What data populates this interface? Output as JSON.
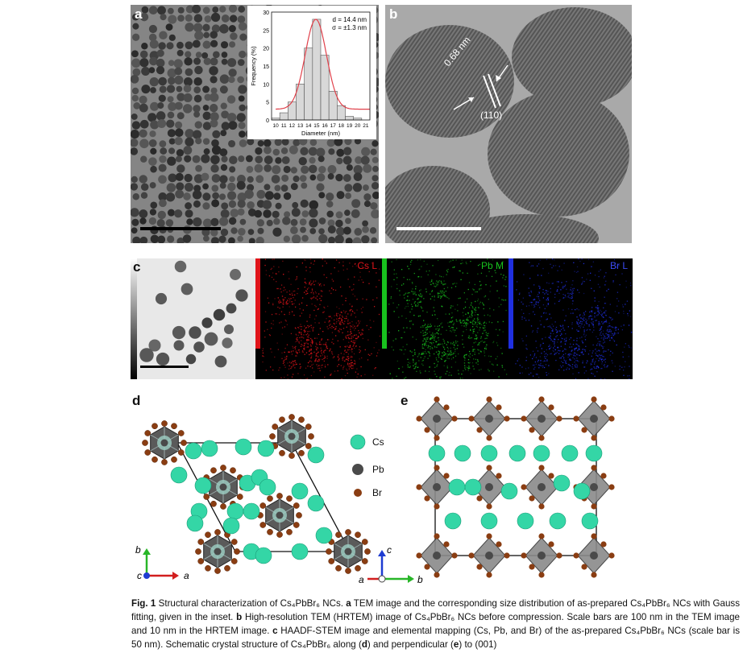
{
  "panels": {
    "a": {
      "label": "a"
    },
    "b": {
      "label": "b",
      "spacing_label": "0.68 nm",
      "plane_label": "(110)"
    },
    "c": {
      "label": "c",
      "maps": [
        {
          "name": "Cs L",
          "color": "#e0141a"
        },
        {
          "name": "Pb M",
          "color": "#18c21e"
        },
        {
          "name": "Br L",
          "color": "#1f2fe0"
        }
      ]
    },
    "d": {
      "label": "d",
      "axis_b": "b",
      "axis_c": "c",
      "axis_a": "a"
    },
    "e": {
      "label": "e",
      "axis_c": "c",
      "axis_a": "a",
      "axis_b": "b"
    }
  },
  "legend": [
    {
      "name": "Cs",
      "color": "#34d6a6"
    },
    {
      "name": "Pb",
      "color": "#4a4a4a"
    },
    {
      "name": "Br",
      "color": "#8a3d12"
    }
  ],
  "chart_data": {
    "type": "bar",
    "categories": [
      "10",
      "11",
      "12",
      "13",
      "14",
      "15",
      "16",
      "17",
      "18",
      "19",
      "20",
      "21"
    ],
    "values": [
      0.5,
      2,
      5,
      10,
      20,
      28,
      18,
      8,
      4,
      1,
      0.5,
      0
    ],
    "ylabel": "Frequency (%)",
    "xlabel": "Diameter (nm)",
    "yticks": [
      "0",
      "5",
      "10",
      "15",
      "20",
      "25",
      "30"
    ],
    "ylim": [
      0,
      30
    ],
    "stat_d": "d = 14.4 nm",
    "stat_sigma": "σ = ±1.3 nm",
    "fit": "Gauss"
  },
  "caption": {
    "fig": "Fig. 1",
    "text": " Structural characterization of Cs₄PbBr₆ NCs. ",
    "a_label": "a",
    "a_text": " TEM image and the corresponding size distribution of as-prepared Cs₄PbBr₆ NCs with Gauss fitting, given in the inset. ",
    "b_label": "b",
    "b_text": " High-resolution TEM (HRTEM) image of Cs₄PbBr₆ NCs before compression. Scale bars are 100 nm in the TEM image and 10 nm in the HRTEM image. ",
    "c_label": "c",
    "c_text": " HAADF-STEM image and elemental mapping (Cs, Pb, and Br) of the as-prepared Cs₄PbBr₆ NCs (scale bar is 50 nm). Schematic crystal structure of Cs₄PbBr₆ along (",
    "d_label": "d",
    "mid_text": ") and perpendicular (",
    "e_label": "e",
    "end_text": ") to (001)"
  }
}
